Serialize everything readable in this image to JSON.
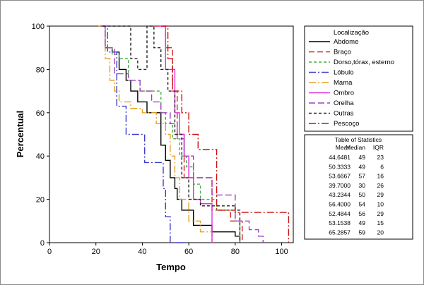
{
  "chart_data": {
    "type": "line",
    "title": "",
    "xlabel": "Tempo",
    "ylabel": "Percentual",
    "xlim": [
      0,
      105
    ],
    "ylim": [
      0,
      100
    ],
    "xticks": [
      0,
      20,
      40,
      60,
      80,
      100
    ],
    "yticks": [
      0,
      20,
      40,
      60,
      80,
      100
    ],
    "grid": false,
    "legend": {
      "title": "Localização",
      "placement": "right"
    },
    "series": [
      {
        "name": "Abdome",
        "color": "#000000",
        "dash": "solid",
        "x": [
          22,
          24,
          27,
          30,
          33,
          35,
          38,
          42,
          48,
          50,
          52,
          54,
          55,
          57,
          62,
          70,
          80,
          82
        ],
        "y": [
          100,
          90,
          88,
          80,
          75,
          70,
          65,
          60,
          45,
          38,
          30,
          25,
          20,
          15,
          8,
          5,
          3,
          0
        ]
      },
      {
        "name": "Braço",
        "color": "#d42020",
        "dash": "8,4",
        "x": [
          45,
          50,
          53,
          55,
          58,
          70,
          78,
          83
        ],
        "y": [
          100,
          90,
          70,
          50,
          30,
          15,
          10,
          0
        ]
      },
      {
        "name": "Dorso,tórax, esterno",
        "color": "#44aa44",
        "dash": "4,3",
        "x": [
          21,
          24,
          27,
          30,
          34,
          39,
          48,
          50,
          53,
          56,
          59,
          62,
          65,
          72,
          80,
          82
        ],
        "y": [
          100,
          90,
          87,
          85,
          75,
          70,
          60,
          55,
          48,
          40,
          35,
          27,
          20,
          15,
          10,
          0
        ]
      },
      {
        "name": "Lóbulo",
        "color": "#3c3cd0",
        "dash": "10,3,2,3",
        "x": [
          22,
          25,
          29,
          33,
          41,
          47,
          49,
          50,
          52,
          55,
          60
        ],
        "y": [
          100,
          88,
          63,
          50,
          37,
          37,
          25,
          12,
          0,
          0,
          0
        ]
      },
      {
        "name": "Mama",
        "color": "#e8a020",
        "dash": "10,3,2,3",
        "x": [
          21,
          24,
          26,
          28,
          30,
          35,
          40,
          46,
          50,
          52,
          54,
          56,
          60,
          65,
          70
        ],
        "y": [
          100,
          85,
          75,
          70,
          65,
          62,
          60,
          55,
          50,
          40,
          30,
          20,
          10,
          5,
          0
        ]
      },
      {
        "name": "Ombro",
        "color": "#e030e0",
        "dash": "solid",
        "x": [
          47,
          50,
          54,
          56,
          58,
          60,
          62,
          65,
          68,
          70
        ],
        "y": [
          100,
          80,
          60,
          50,
          40,
          30,
          20,
          18,
          18,
          0
        ]
      },
      {
        "name": "Orelha",
        "color": "#a040c0",
        "dash": "9,4",
        "x": [
          22,
          24,
          28,
          34,
          39,
          44,
          48,
          52,
          55,
          58,
          62,
          70,
          80,
          86,
          90,
          92
        ],
        "y": [
          100,
          90,
          78,
          75,
          70,
          65,
          60,
          55,
          48,
          40,
          30,
          22,
          10,
          6,
          3,
          0
        ]
      },
      {
        "name": "Outras",
        "color": "#222222",
        "dash": "4,3",
        "x": [
          23,
          35,
          38,
          42,
          45,
          48,
          51,
          54,
          57,
          60,
          65,
          72,
          80,
          82
        ],
        "y": [
          100,
          85,
          80,
          100,
          90,
          80,
          70,
          50,
          30,
          20,
          17,
          17,
          15,
          0
        ]
      },
      {
        "name": "Pescoço",
        "color": "#cc1010",
        "dash": "10,3,2,3",
        "x": [
          48,
          51,
          53,
          57,
          60,
          64,
          70,
          72,
          80,
          100,
          103
        ],
        "y": [
          100,
          85,
          70,
          60,
          50,
          43,
          43,
          15,
          14,
          14,
          0
        ]
      }
    ],
    "table": {
      "title": "Table of Statistics",
      "headers": [
        "Mean",
        "Median",
        "IQR"
      ],
      "rows": [
        [
          "44,6481",
          "49",
          "23"
        ],
        [
          "50.3333",
          "49",
          "6"
        ],
        [
          "53.6667",
          "57",
          "16"
        ],
        [
          "39.7000",
          "30",
          "26"
        ],
        [
          "43.2344",
          "50",
          "29"
        ],
        [
          "56.4000",
          "54",
          "10"
        ],
        [
          "52.4844",
          "56",
          "29"
        ],
        [
          "53.1538",
          "49",
          "15"
        ],
        [
          "65.2857",
          "59",
          "20"
        ]
      ]
    }
  }
}
